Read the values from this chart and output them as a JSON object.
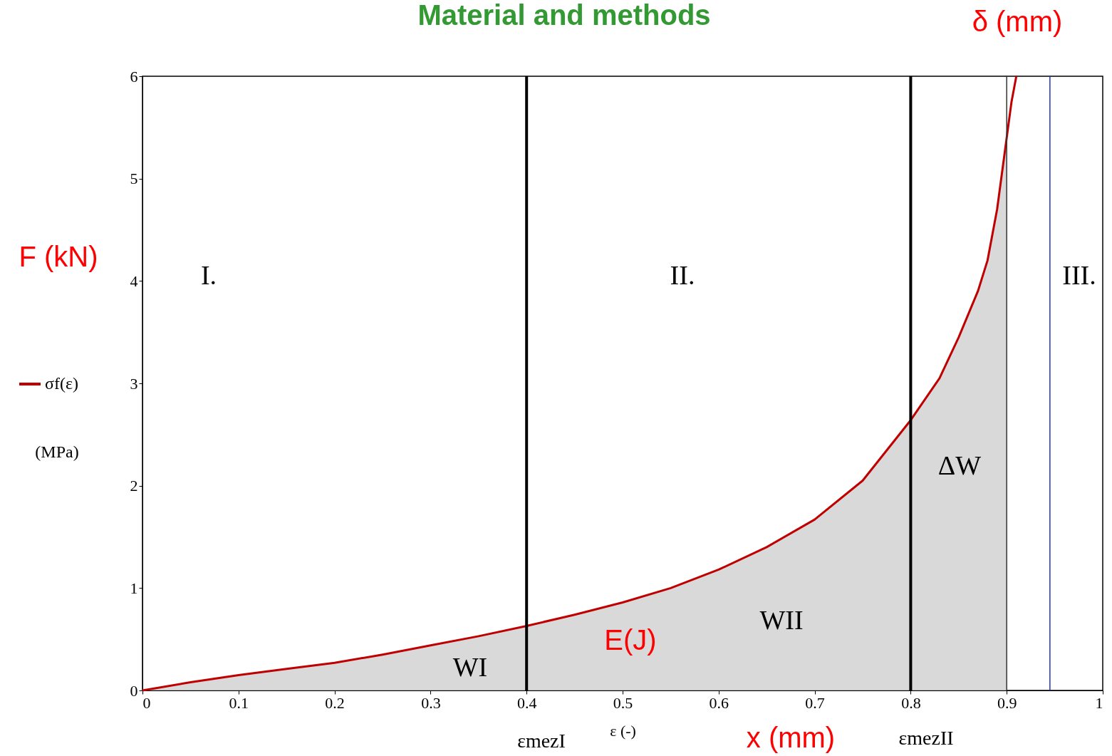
{
  "chart_data": {
    "type": "line",
    "title": "Material and methods",
    "xlabel": "ε   (-)",
    "ylabel": "(MPa)",
    "xlim": [
      0,
      1
    ],
    "xticks": [
      0,
      0.1,
      0.2,
      0.3,
      0.4,
      0.5,
      0.6,
      0.7,
      0.8,
      0.9,
      1
    ],
    "ylim": [
      0,
      6
    ],
    "yticks": [
      0,
      1,
      2,
      3,
      4,
      5,
      6
    ],
    "grid": false,
    "legend": "left",
    "marker": "none",
    "line_style": "solid",
    "series": [
      {
        "type": "area",
        "color": "#cfcfcf",
        "x": [
          0,
          0.05,
          0.1,
          0.15,
          0.2,
          0.25,
          0.3,
          0.35,
          0.4,
          0.45,
          0.5,
          0.55,
          0.6,
          0.65,
          0.7,
          0.75,
          0.8,
          0.83,
          0.85,
          0.87,
          0.88,
          0.89,
          0.9
        ],
        "values": [
          0,
          0.08,
          0.15,
          0.21,
          0.27,
          0.35,
          0.44,
          0.53,
          0.63,
          0.74,
          0.86,
          1.0,
          1.18,
          1.4,
          1.67,
          2.05,
          2.64,
          3.05,
          3.45,
          3.9,
          4.2,
          4.7,
          5.4
        ]
      },
      {
        "name": "σf(ε)",
        "color": "#c00000",
        "x": [
          0,
          0.05,
          0.1,
          0.15,
          0.2,
          0.25,
          0.3,
          0.35,
          0.4,
          0.45,
          0.5,
          0.55,
          0.6,
          0.65,
          0.7,
          0.75,
          0.8,
          0.83,
          0.85,
          0.87,
          0.88,
          0.89,
          0.9,
          0.905,
          0.91
        ],
        "values": [
          0,
          0.08,
          0.15,
          0.21,
          0.27,
          0.35,
          0.44,
          0.53,
          0.63,
          0.74,
          0.86,
          1.0,
          1.18,
          1.4,
          1.67,
          2.05,
          2.64,
          3.05,
          3.45,
          3.9,
          4.2,
          4.7,
          5.4,
          5.75,
          6.0
        ]
      }
    ],
    "ref_lines": [
      {
        "axis": "x",
        "value": 0.4,
        "color": "#000000"
      },
      {
        "axis": "x",
        "value": 0.8,
        "color": "#000000"
      },
      {
        "axis": "x",
        "value": 0.9,
        "color": "#333333"
      },
      {
        "axis": "x",
        "value": 0.945,
        "color": "#2233bb"
      }
    ],
    "annotations": [
      "I.",
      "II.",
      "III.",
      "WI",
      "WII",
      "ΔW",
      "E(J)",
      "F (kN)",
      "δ (mm)",
      "x (mm)",
      "εmezI",
      "εmezII"
    ]
  }
}
